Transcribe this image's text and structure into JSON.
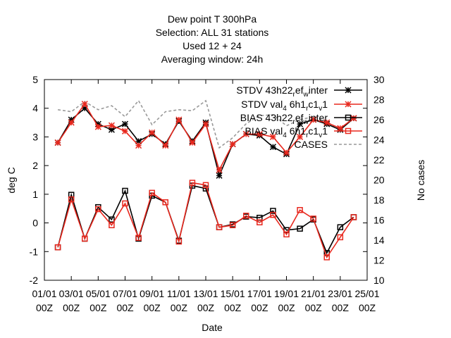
{
  "chart_data": {
    "type": "line",
    "title": [
      "Dew point T 300hPa",
      "Selection: ALL      31 stations",
      "Used  12  + 24",
      "Averaging window: 24h"
    ],
    "xlabel": "Date",
    "ylabel": "deg C",
    "y2label": "No cases",
    "ylim": [
      -2,
      5
    ],
    "y2lim": [
      10,
      30
    ],
    "yticks": [
      "-2",
      "-1",
      "0",
      "1",
      "2",
      "3",
      "4",
      "5"
    ],
    "y2ticks": [
      "10",
      "12",
      "14",
      "16",
      "18",
      "20",
      "22",
      "24",
      "26",
      "28",
      "30"
    ],
    "xticks": [
      {
        "t": 0,
        "line1": "01/01",
        "line2": "00Z"
      },
      {
        "t": 2,
        "line1": "03/01",
        "line2": "00Z"
      },
      {
        "t": 4,
        "line1": "05/01",
        "line2": "00Z"
      },
      {
        "t": 6,
        "line1": "07/01",
        "line2": "00Z"
      },
      {
        "t": 8,
        "line1": "09/01",
        "line2": "00Z"
      },
      {
        "t": 10,
        "line1": "11/01",
        "line2": "00Z"
      },
      {
        "t": 12,
        "line1": "13/01",
        "line2": "00Z"
      },
      {
        "t": 14,
        "line1": "15/01",
        "line2": "00Z"
      },
      {
        "t": 16,
        "line1": "17/01",
        "line2": "00Z"
      },
      {
        "t": 18,
        "line1": "19/01",
        "line2": "00Z"
      },
      {
        "t": 20,
        "line1": "21/01",
        "line2": "00Z"
      },
      {
        "t": 22,
        "line1": "23/01",
        "line2": "00Z"
      },
      {
        "t": 24,
        "line1": "25/01",
        "line2": "00Z"
      }
    ],
    "xlim": [
      0,
      24
    ],
    "x": [
      1,
      2,
      3,
      4,
      5,
      6,
      7,
      8,
      9,
      10,
      11,
      12,
      13,
      14,
      15,
      16,
      17,
      18,
      19,
      20,
      21,
      22,
      23
    ],
    "series": [
      {
        "name": "STDV 43h22_ref_w_inter",
        "axis": "y",
        "color": "#000000",
        "marker": "star",
        "values": [
          2.8,
          3.6,
          4.0,
          3.45,
          3.25,
          3.45,
          2.85,
          3.1,
          2.75,
          3.55,
          2.85,
          3.5,
          1.65,
          2.75,
          3.1,
          3.05,
          2.65,
          2.4,
          3.45,
          3.6,
          3.45,
          3.25,
          3.65
        ]
      },
      {
        "name": "STDV val_4 6h1_rc1_v1",
        "axis": "y",
        "color": "#e8281e",
        "marker": "star",
        "values": [
          2.8,
          3.5,
          4.15,
          3.35,
          3.4,
          3.2,
          2.7,
          3.15,
          2.7,
          3.6,
          2.8,
          3.45,
          1.85,
          2.75,
          3.1,
          3.1,
          3.0,
          2.45,
          3.0,
          3.6,
          3.5,
          3.3,
          3.65
        ]
      },
      {
        "name": "BIAS 43h22_ref_w_inter",
        "axis": "y",
        "color": "#000000",
        "marker": "square",
        "values": [
          -0.85,
          0.98,
          -0.55,
          0.55,
          0.12,
          1.12,
          -0.55,
          0.95,
          0.72,
          -0.62,
          1.3,
          1.2,
          -0.15,
          -0.05,
          0.22,
          0.18,
          0.42,
          -0.25,
          -0.2,
          0.12,
          -1.05,
          -0.15,
          0.2
        ]
      },
      {
        "name": "BIAS val_4 6h1_rc1_v1",
        "axis": "y",
        "color": "#e8281e",
        "marker": "square",
        "values": [
          -0.85,
          0.82,
          -0.55,
          0.48,
          -0.08,
          0.68,
          -0.52,
          1.05,
          0.72,
          -0.65,
          1.4,
          1.32,
          -0.15,
          -0.08,
          0.25,
          0.02,
          0.28,
          -0.4,
          0.45,
          0.15,
          -1.2,
          -0.5,
          0.2
        ]
      },
      {
        "name": "CASES",
        "axis": "y2",
        "color": "#999999",
        "dashed": true,
        "values": [
          27.0,
          26.8,
          27.8,
          27.0,
          27.4,
          26.3,
          27.9,
          25.5,
          26.8,
          27.0,
          26.9,
          27.9,
          23.2,
          24.2,
          25.6,
          26.4,
          26.5,
          25.4,
          26.0,
          26.3,
          25.8,
          25.0,
          26.3
        ]
      }
    ],
    "legend": {
      "placement": "top-right",
      "labels": [
        {
          "pre": "STDV 43h22",
          "mid": [
            [
              "r",
              "sub"
            ],
            [
              "ef",
              ""
            ],
            [
              "w",
              "sub"
            ],
            [
              "inter",
              ""
            ]
          ]
        },
        {
          "pre": "STDV val",
          "mid": [
            [
              "4",
              "sub"
            ],
            [
              " 6h1",
              ""
            ],
            [
              "r",
              "sub"
            ],
            [
              "c1",
              ""
            ],
            [
              "v",
              "sub"
            ],
            [
              "1",
              ""
            ]
          ]
        },
        {
          "pre": "BIAS 43h22",
          "mid": [
            [
              "r",
              "sub"
            ],
            [
              "ef",
              ""
            ],
            [
              "w",
              "sub"
            ],
            [
              "inter",
              ""
            ]
          ]
        },
        {
          "pre": "BIAS val",
          "mid": [
            [
              "4",
              "sub"
            ],
            [
              " 6h1",
              ""
            ],
            [
              "r",
              "sub"
            ],
            [
              "c1",
              ""
            ],
            [
              "v",
              "sub"
            ],
            [
              "1",
              ""
            ]
          ]
        },
        {
          "pre": "CASES",
          "mid": []
        }
      ]
    },
    "grid": false
  }
}
